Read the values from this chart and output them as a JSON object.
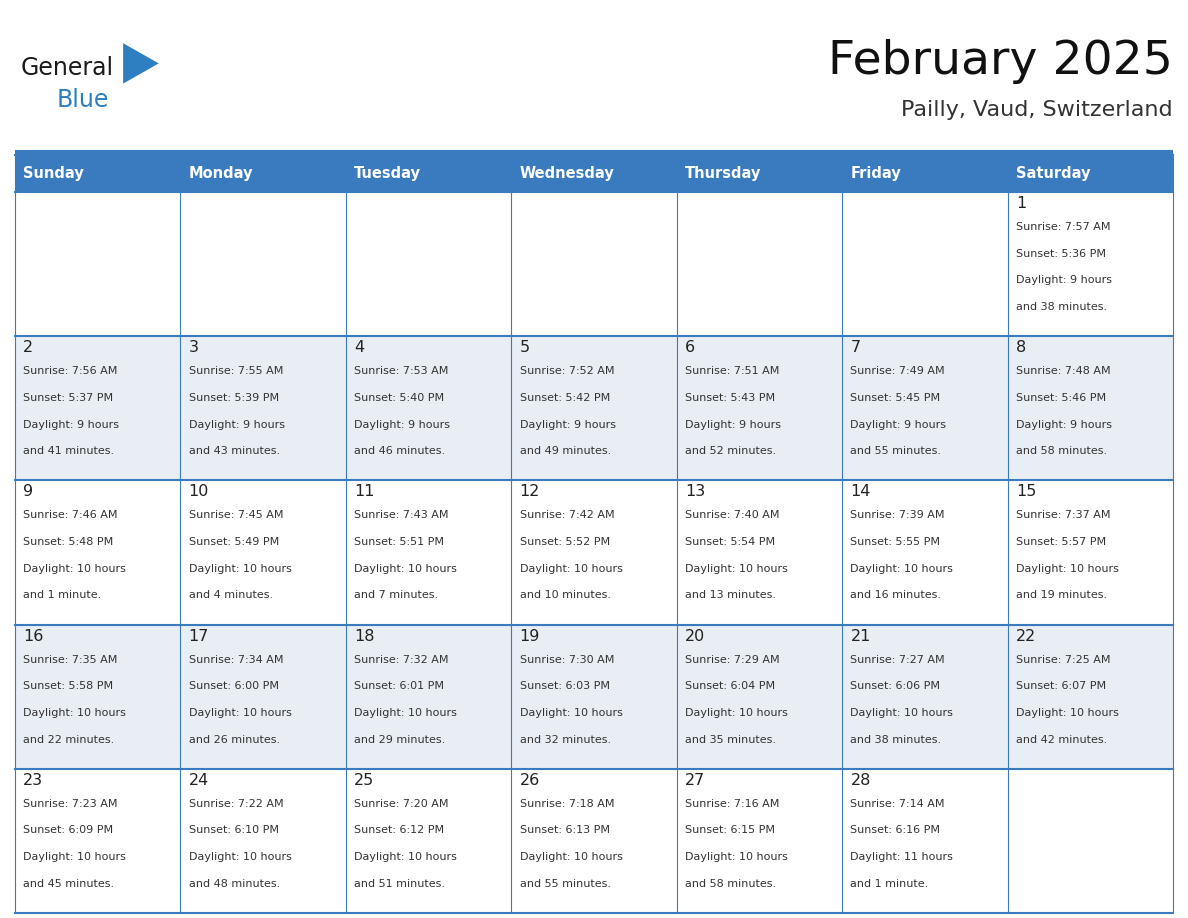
{
  "title": "February 2025",
  "subtitle": "Pailly, Vaud, Switzerland",
  "days_of_week": [
    "Sunday",
    "Monday",
    "Tuesday",
    "Wednesday",
    "Thursday",
    "Friday",
    "Saturday"
  ],
  "header_bg": "#3a7bbf",
  "header_text": "#FFFFFF",
  "cell_bg_odd": "#FFFFFF",
  "cell_bg_even": "#e8eef4",
  "border_color": "#3a7bbf",
  "sep_line_color": "#3a7bbf",
  "day_num_color": "#222222",
  "text_color": "#333333",
  "title_color": "#111111",
  "subtitle_color": "#333333",
  "logo_color_general": "#1a1a1a",
  "logo_color_blue": "#2E7EC2",
  "logo_triangle_color": "#2E7EC2",
  "weeks": [
    {
      "days": [
        {
          "day": null,
          "sunrise": null,
          "sunset": null,
          "daylight": null
        },
        {
          "day": null,
          "sunrise": null,
          "sunset": null,
          "daylight": null
        },
        {
          "day": null,
          "sunrise": null,
          "sunset": null,
          "daylight": null
        },
        {
          "day": null,
          "sunrise": null,
          "sunset": null,
          "daylight": null
        },
        {
          "day": null,
          "sunrise": null,
          "sunset": null,
          "daylight": null
        },
        {
          "day": null,
          "sunrise": null,
          "sunset": null,
          "daylight": null
        },
        {
          "day": 1,
          "sunrise": "7:57 AM",
          "sunset": "5:36 PM",
          "daylight": "9 hours and 38 minutes."
        }
      ]
    },
    {
      "days": [
        {
          "day": 2,
          "sunrise": "7:56 AM",
          "sunset": "5:37 PM",
          "daylight": "9 hours and 41 minutes."
        },
        {
          "day": 3,
          "sunrise": "7:55 AM",
          "sunset": "5:39 PM",
          "daylight": "9 hours and 43 minutes."
        },
        {
          "day": 4,
          "sunrise": "7:53 AM",
          "sunset": "5:40 PM",
          "daylight": "9 hours and 46 minutes."
        },
        {
          "day": 5,
          "sunrise": "7:52 AM",
          "sunset": "5:42 PM",
          "daylight": "9 hours and 49 minutes."
        },
        {
          "day": 6,
          "sunrise": "7:51 AM",
          "sunset": "5:43 PM",
          "daylight": "9 hours and 52 minutes."
        },
        {
          "day": 7,
          "sunrise": "7:49 AM",
          "sunset": "5:45 PM",
          "daylight": "9 hours and 55 minutes."
        },
        {
          "day": 8,
          "sunrise": "7:48 AM",
          "sunset": "5:46 PM",
          "daylight": "9 hours and 58 minutes."
        }
      ]
    },
    {
      "days": [
        {
          "day": 9,
          "sunrise": "7:46 AM",
          "sunset": "5:48 PM",
          "daylight": "10 hours and 1 minute."
        },
        {
          "day": 10,
          "sunrise": "7:45 AM",
          "sunset": "5:49 PM",
          "daylight": "10 hours and 4 minutes."
        },
        {
          "day": 11,
          "sunrise": "7:43 AM",
          "sunset": "5:51 PM",
          "daylight": "10 hours and 7 minutes."
        },
        {
          "day": 12,
          "sunrise": "7:42 AM",
          "sunset": "5:52 PM",
          "daylight": "10 hours and 10 minutes."
        },
        {
          "day": 13,
          "sunrise": "7:40 AM",
          "sunset": "5:54 PM",
          "daylight": "10 hours and 13 minutes."
        },
        {
          "day": 14,
          "sunrise": "7:39 AM",
          "sunset": "5:55 PM",
          "daylight": "10 hours and 16 minutes."
        },
        {
          "day": 15,
          "sunrise": "7:37 AM",
          "sunset": "5:57 PM",
          "daylight": "10 hours and 19 minutes."
        }
      ]
    },
    {
      "days": [
        {
          "day": 16,
          "sunrise": "7:35 AM",
          "sunset": "5:58 PM",
          "daylight": "10 hours and 22 minutes."
        },
        {
          "day": 17,
          "sunrise": "7:34 AM",
          "sunset": "6:00 PM",
          "daylight": "10 hours and 26 minutes."
        },
        {
          "day": 18,
          "sunrise": "7:32 AM",
          "sunset": "6:01 PM",
          "daylight": "10 hours and 29 minutes."
        },
        {
          "day": 19,
          "sunrise": "7:30 AM",
          "sunset": "6:03 PM",
          "daylight": "10 hours and 32 minutes."
        },
        {
          "day": 20,
          "sunrise": "7:29 AM",
          "sunset": "6:04 PM",
          "daylight": "10 hours and 35 minutes."
        },
        {
          "day": 21,
          "sunrise": "7:27 AM",
          "sunset": "6:06 PM",
          "daylight": "10 hours and 38 minutes."
        },
        {
          "day": 22,
          "sunrise": "7:25 AM",
          "sunset": "6:07 PM",
          "daylight": "10 hours and 42 minutes."
        }
      ]
    },
    {
      "days": [
        {
          "day": 23,
          "sunrise": "7:23 AM",
          "sunset": "6:09 PM",
          "daylight": "10 hours and 45 minutes."
        },
        {
          "day": 24,
          "sunrise": "7:22 AM",
          "sunset": "6:10 PM",
          "daylight": "10 hours and 48 minutes."
        },
        {
          "day": 25,
          "sunrise": "7:20 AM",
          "sunset": "6:12 PM",
          "daylight": "10 hours and 51 minutes."
        },
        {
          "day": 26,
          "sunrise": "7:18 AM",
          "sunset": "6:13 PM",
          "daylight": "10 hours and 55 minutes."
        },
        {
          "day": 27,
          "sunrise": "7:16 AM",
          "sunset": "6:15 PM",
          "daylight": "10 hours and 58 minutes."
        },
        {
          "day": 28,
          "sunrise": "7:14 AM",
          "sunset": "6:16 PM",
          "daylight": "11 hours and 1 minute."
        },
        {
          "day": null,
          "sunrise": null,
          "sunset": null,
          "daylight": null
        }
      ]
    }
  ]
}
